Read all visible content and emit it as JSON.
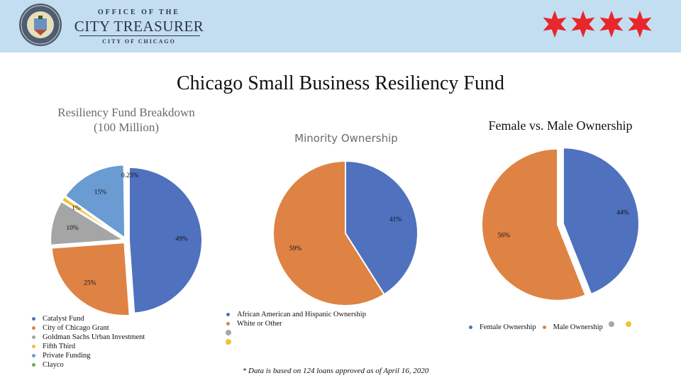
{
  "header": {
    "office_line1": "OFFICE OF THE",
    "office_line2": "CITY TREASURER",
    "office_line3": "CITY OF CHICAGO",
    "seal_icon": "city-of-chicago-seal",
    "star_icon": "red-six-point-star",
    "star_color": "#e8262c",
    "background": "#c3def0"
  },
  "title": "Chicago Small Business Resiliency Fund",
  "footnote": "* Data is based on 124 loans approved as of April 16, 2020",
  "chart_data": [
    {
      "type": "pie",
      "title": "Resiliency Fund Breakdown",
      "subtitle": "(100 Million)",
      "categories": [
        "Catalyst Fund",
        "City of Chicago Grant",
        "Goldman Sachs Urban Investment",
        "Fifth Third",
        "Private Funding",
        "Clayco"
      ],
      "values": [
        49,
        25,
        10,
        1,
        15,
        0.25
      ],
      "labels": [
        "49%",
        "25%",
        "10%",
        "1%",
        "15%",
        "0.25%"
      ],
      "colors": [
        "#4f71be",
        "#de8344",
        "#a5a5a5",
        "#f1c232",
        "#6a9bd3",
        "#6aac46"
      ],
      "legend": "bottom-left"
    },
    {
      "type": "pie",
      "title": "Minority Ownership",
      "categories": [
        "African American and Hispanic Ownership",
        "White or Other",
        "",
        ""
      ],
      "values": [
        41,
        59
      ],
      "labels": [
        "41%",
        "59%"
      ],
      "colors": [
        "#4f71be",
        "#de8344",
        "#a5a5a5",
        "#f1c232"
      ],
      "legend": "bottom-left"
    },
    {
      "type": "pie",
      "title": "Female vs. Male Ownership",
      "categories": [
        "Female Ownership",
        "Male Ownership",
        "",
        ""
      ],
      "values": [
        44,
        56
      ],
      "labels": [
        "44%",
        "56%"
      ],
      "colors": [
        "#4f71be",
        "#de8344",
        "#a5a5a5",
        "#f1c232"
      ],
      "legend": "bottom"
    }
  ]
}
